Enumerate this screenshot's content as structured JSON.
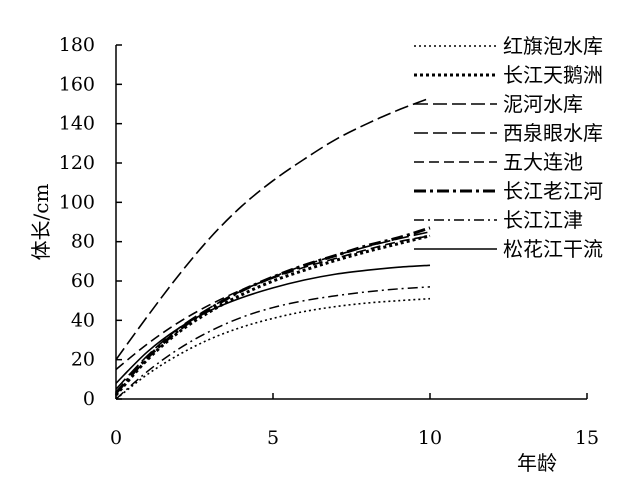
{
  "chart_data": {
    "type": "line",
    "xlabel": "年龄",
    "ylabel": "体长/cm",
    "xlim": [
      0,
      15
    ],
    "ylim": [
      0,
      180
    ],
    "x_ticks": [
      "0",
      "5",
      "10",
      "15"
    ],
    "y_ticks": [
      "0",
      "20",
      "40",
      "60",
      "80",
      "100",
      "120",
      "140",
      "160",
      "180"
    ],
    "grid": false,
    "legend_position": "top-right",
    "series": [
      {
        "name": "红旗泡水库",
        "linestyle": "dotted-short",
        "x": [
          0,
          1,
          2,
          3,
          4,
          5,
          6,
          7,
          8,
          9,
          10
        ],
        "y": [
          0,
          12.5,
          22.5,
          30.5,
          36.5,
          41,
          44.5,
          47,
          48.8,
          50,
          51
        ]
      },
      {
        "name": "长江天鹅洲",
        "linestyle": "dotted",
        "x": [
          0,
          1,
          2,
          3,
          4,
          5,
          6,
          7,
          8,
          9,
          10
        ],
        "y": [
          2,
          20,
          34,
          44.5,
          53,
          60,
          65.5,
          70.5,
          75,
          79,
          83
        ]
      },
      {
        "name": "泥河水库",
        "linestyle": "dashed-long",
        "x": [
          0,
          1,
          2,
          3,
          4,
          5,
          6,
          7,
          8,
          9,
          10
        ],
        "y": [
          20,
          42,
          63,
          82,
          98,
          111,
          122,
          132,
          140,
          147,
          153
        ]
      },
      {
        "name": "西泉眼水库",
        "linestyle": "dashed-long",
        "x": [
          0,
          1,
          2,
          3,
          4,
          5,
          6,
          7,
          8,
          9,
          10
        ],
        "y": [
          5,
          22,
          36,
          46.5,
          55,
          62,
          68,
          73,
          77.5,
          81.5,
          85
        ]
      },
      {
        "name": "五大连池",
        "linestyle": "dashed",
        "x": [
          0,
          1,
          2,
          3,
          4,
          5,
          6,
          7,
          8,
          9,
          10
        ],
        "y": [
          15,
          28,
          39,
          48,
          55.5,
          61.5,
          67,
          71.5,
          76,
          80,
          83
        ]
      },
      {
        "name": "长江老江河",
        "linestyle": "dash-dot-bold",
        "x": [
          0,
          1,
          2,
          3,
          4,
          5,
          6,
          7,
          8,
          9,
          10
        ],
        "y": [
          3,
          21,
          35,
          46,
          55,
          62,
          68,
          73,
          78,
          82,
          87
        ]
      },
      {
        "name": "长江江津",
        "linestyle": "dash-dot",
        "x": [
          0,
          1,
          2,
          3,
          4,
          5,
          6,
          7,
          8,
          9,
          10
        ],
        "y": [
          0,
          14,
          25.5,
          34.5,
          41.5,
          46.5,
          50,
          52.5,
          54.5,
          56,
          57
        ]
      },
      {
        "name": "松花江干流",
        "linestyle": "solid",
        "x": [
          0,
          1,
          2,
          3,
          4,
          5,
          6,
          7,
          8,
          9,
          10
        ],
        "y": [
          8,
          24,
          36,
          45,
          51.5,
          56.5,
          60.5,
          63.5,
          65.5,
          67,
          68
        ]
      }
    ]
  }
}
